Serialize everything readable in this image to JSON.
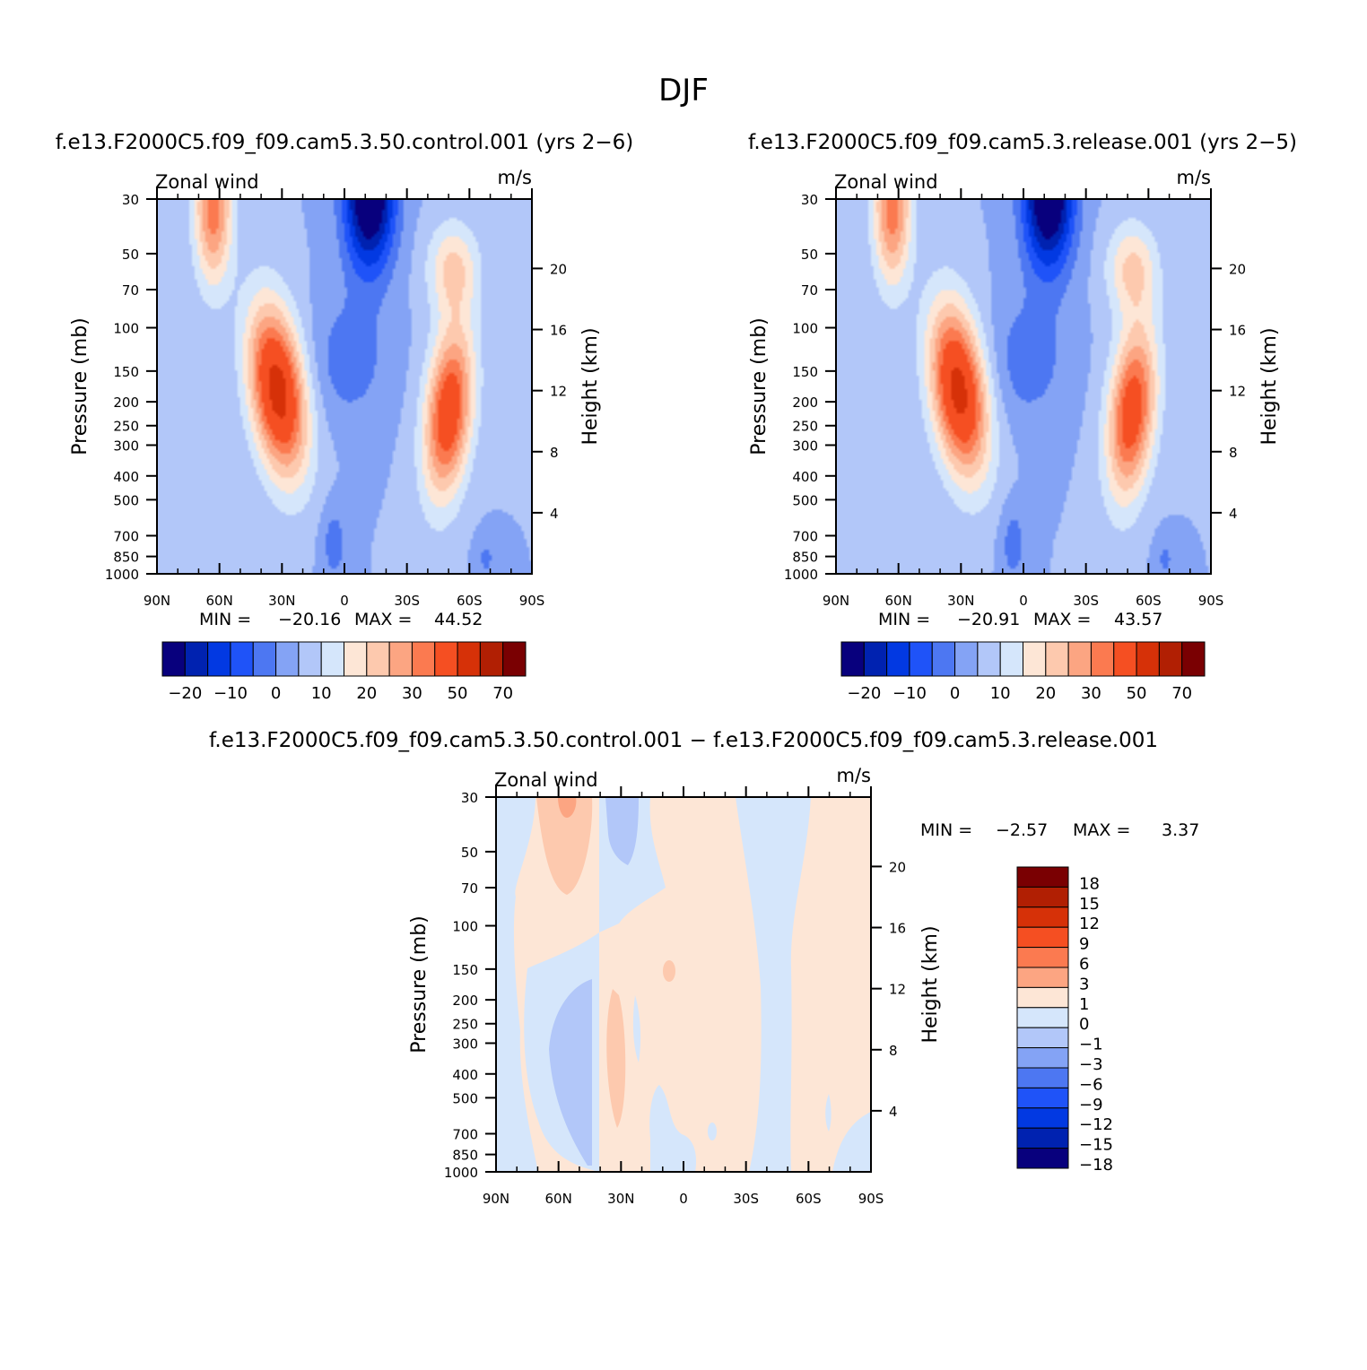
{
  "page": {
    "title": "DJF"
  },
  "chart_data": [
    {
      "type": "heatmap",
      "id": "control",
      "title": "f.e13.F2000C5.f09_f09.cam5.3.50.control.001 (yrs 2−6)",
      "left_label": "Zonal wind",
      "units": "m/s",
      "ylabel": "Pressure (mb)",
      "ylabel_right": "Height (km)",
      "xlim": [
        90,
        -90
      ],
      "ylim": [
        1000,
        30
      ],
      "yscale": "log",
      "x_ticks": [
        90,
        60,
        30,
        0,
        -30,
        -60,
        -90
      ],
      "x_tick_labels": [
        "90N",
        "60N",
        "30N",
        "0",
        "30S",
        "60S",
        "90S"
      ],
      "y_ticks": [
        30,
        50,
        70,
        100,
        150,
        200,
        250,
        300,
        400,
        500,
        700,
        850,
        1000
      ],
      "y_tick_labels": [
        "30",
        "50",
        "70",
        "100",
        "150",
        "200",
        "250",
        "300",
        "400",
        "500",
        "700",
        "850",
        "1000"
      ],
      "height_ticks": [
        20,
        16,
        12,
        8,
        4
      ],
      "height_tick_labels": [
        "20",
        "16",
        "12",
        "8",
        "4"
      ],
      "min_label": "MIN =",
      "min": "−20.16",
      "max_label": "MAX =",
      "max": "44.52",
      "jets": [
        {
          "lat": 32,
          "p": 180,
          "speed": 44.5
        },
        {
          "lat": -50,
          "p": 220,
          "speed": 37
        }
      ]
    },
    {
      "type": "heatmap",
      "id": "release",
      "title": "f.e13.F2000C5.f09_f09.cam5.3.release.001 (yrs 2−5)",
      "left_label": "Zonal wind",
      "units": "m/s",
      "ylabel": "Pressure (mb)",
      "ylabel_right": "Height (km)",
      "xlim": [
        90,
        -90
      ],
      "ylim": [
        1000,
        30
      ],
      "yscale": "log",
      "x_ticks": [
        90,
        60,
        30,
        0,
        -30,
        -60,
        -90
      ],
      "x_tick_labels": [
        "90N",
        "60N",
        "30N",
        "0",
        "30S",
        "60S",
        "90S"
      ],
      "y_ticks": [
        30,
        50,
        70,
        100,
        150,
        200,
        250,
        300,
        400,
        500,
        700,
        850,
        1000
      ],
      "y_tick_labels": [
        "30",
        "50",
        "70",
        "100",
        "150",
        "200",
        "250",
        "300",
        "400",
        "500",
        "700",
        "850",
        "1000"
      ],
      "height_ticks": [
        20,
        16,
        12,
        8,
        4
      ],
      "height_tick_labels": [
        "20",
        "16",
        "12",
        "8",
        "4"
      ],
      "min_label": "MIN =",
      "min": "−20.91",
      "max_label": "MAX =",
      "max": "43.57",
      "jets": [
        {
          "lat": 31,
          "p": 180,
          "speed": 43.5
        },
        {
          "lat": -52,
          "p": 220,
          "speed": 36
        }
      ]
    },
    {
      "type": "heatmap",
      "id": "difference",
      "title": "f.e13.F2000C5.f09_f09.cam5.3.50.control.001 − f.e13.F2000C5.f09_f09.cam5.3.release.001",
      "left_label": "Zonal wind",
      "units": "m/s",
      "ylabel": "Pressure (mb)",
      "ylabel_right": "Height (km)",
      "xlim": [
        90,
        -90
      ],
      "ylim": [
        1000,
        30
      ],
      "yscale": "log",
      "x_ticks": [
        90,
        60,
        30,
        0,
        -30,
        -60,
        -90
      ],
      "x_tick_labels": [
        "90N",
        "60N",
        "30N",
        "0",
        "30S",
        "60S",
        "90S"
      ],
      "y_ticks": [
        30,
        50,
        70,
        100,
        150,
        200,
        250,
        300,
        400,
        500,
        700,
        850,
        1000
      ],
      "y_tick_labels": [
        "30",
        "50",
        "70",
        "100",
        "150",
        "200",
        "250",
        "300",
        "400",
        "500",
        "700",
        "850",
        "1000"
      ],
      "height_ticks": [
        20,
        16,
        12,
        8,
        4
      ],
      "height_tick_labels": [
        "20",
        "16",
        "12",
        "8",
        "4"
      ],
      "min_label": "MIN =",
      "min": "−2.57",
      "max_label": "MAX =",
      "max": "3.37"
    }
  ],
  "colorbars": {
    "field": {
      "colors": [
        "#08007d",
        "#0022b0",
        "#0239e2",
        "#1f53f8",
        "#4d77f2",
        "#84a3f5",
        "#b2c7f9",
        "#d5e6fb",
        "#fde6d6",
        "#fdc9ae",
        "#fca582",
        "#fb7a50",
        "#f54f22",
        "#d63108",
        "#b11f03",
        "#7a0002"
      ],
      "boundaries": [
        -25,
        -20,
        -15,
        -10,
        -5,
        0,
        5,
        10,
        15,
        20,
        25,
        30,
        40,
        50,
        60,
        70
      ],
      "labels": [
        "−20",
        "−10",
        "0",
        "10",
        "20",
        "30",
        "50",
        "70"
      ]
    },
    "difference": {
      "colors": [
        "#7a0002",
        "#b11f03",
        "#d63108",
        "#f54f22",
        "#fb7a50",
        "#fca582",
        "#fde6d6",
        "#d5e6fb",
        "#b2c7f9",
        "#84a3f5",
        "#4d77f2",
        "#1f53f8",
        "#0239e2",
        "#0022b0",
        "#08007d"
      ],
      "labels": [
        "18",
        "15",
        "12",
        "9",
        "6",
        "3",
        "1",
        "0",
        "−1",
        "−3",
        "−6",
        "−9",
        "−12",
        "−15",
        "−18"
      ]
    }
  }
}
